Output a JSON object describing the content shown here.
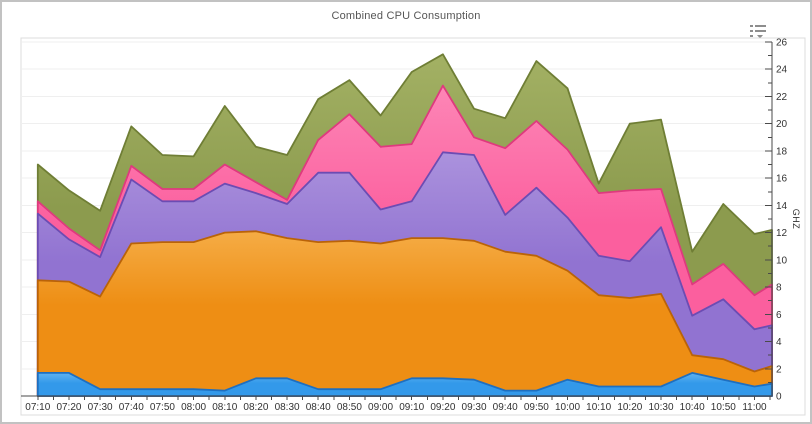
{
  "header": {
    "title": "Combined CPU Consumption",
    "menu_icon": "chart-context-menu"
  },
  "chart_data": {
    "type": "area",
    "stacked": true,
    "title": "Combined CPU Consumption",
    "xlabel": "",
    "ylabel": "GHZ",
    "ylim": [
      0,
      26
    ],
    "y_major_step": 2,
    "y_minor_step": 1,
    "y_tick_labels": [
      "0",
      "2",
      "4",
      "6",
      "8",
      "10",
      "12",
      "14",
      "16",
      "18",
      "20",
      "22",
      "24",
      "26"
    ],
    "y_axis_side": "right",
    "grid": "horizontal-major",
    "legend": "none",
    "categories": [
      "07:10",
      "07:20",
      "07:30",
      "07:40",
      "07:50",
      "08:00",
      "08:10",
      "08:20",
      "08:30",
      "08:40",
      "08:50",
      "09:00",
      "09:10",
      "09:20",
      "09:30",
      "09:40",
      "09:50",
      "10:00",
      "10:10",
      "10:20",
      "10:30",
      "10:40",
      "10:50",
      "11:00"
    ],
    "x_overhang_intervals": 0.56,
    "series": [
      {
        "name": "blue",
        "color": "#3399EA",
        "color_light": "#5FB2F1",
        "stroke": "#1E6FC0",
        "values": [
          1.7,
          1.7,
          0.5,
          0.5,
          0.5,
          0.5,
          0.4,
          1.3,
          1.3,
          0.5,
          0.5,
          0.5,
          1.3,
          1.3,
          1.2,
          0.4,
          0.4,
          1.2,
          0.7,
          0.7,
          0.7,
          1.7,
          1.2,
          0.7
        ],
        "edge_value": 0.9
      },
      {
        "name": "orange",
        "color": "#EE8E14",
        "color_light": "#F5AC45",
        "stroke": "#BA6308",
        "values": [
          6.8,
          6.7,
          6.8,
          10.7,
          10.8,
          10.8,
          11.6,
          10.8,
          10.3,
          10.8,
          10.9,
          10.7,
          10.3,
          10.3,
          10.2,
          10.2,
          9.9,
          8.0,
          6.7,
          6.5,
          6.8,
          1.3,
          1.5,
          1.1
        ],
        "edge_value": 1.3
      },
      {
        "name": "purple",
        "color": "#9173D1",
        "color_light": "#AB92DD",
        "stroke": "#6C4CB3",
        "values": [
          4.9,
          3.1,
          2.9,
          4.7,
          3.0,
          3.0,
          3.6,
          2.8,
          2.5,
          5.1,
          5.0,
          2.5,
          2.7,
          6.3,
          6.3,
          2.7,
          5.0,
          3.9,
          2.9,
          2.7,
          4.9,
          2.9,
          4.4,
          3.1
        ],
        "edge_value": 3.0
      },
      {
        "name": "pink",
        "color": "#FB5F9E",
        "color_light": "#FD86B6",
        "stroke": "#DE3A7E",
        "values": [
          0.9,
          0.8,
          0.5,
          1.0,
          0.9,
          0.9,
          1.4,
          0.8,
          0.3,
          2.4,
          4.3,
          4.6,
          4.2,
          4.9,
          1.3,
          4.9,
          4.9,
          5.0,
          4.6,
          5.2,
          2.8,
          2.3,
          2.6,
          2.5
        ],
        "edge_value": 3.0
      },
      {
        "name": "olive",
        "color": "#8C9B4E",
        "color_light": "#A3B164",
        "stroke": "#6F7E35",
        "values": [
          2.7,
          2.8,
          2.9,
          2.9,
          2.5,
          2.4,
          4.3,
          2.6,
          3.3,
          3.0,
          2.5,
          2.3,
          5.3,
          2.3,
          2.1,
          2.2,
          4.4,
          4.5,
          0.7,
          4.9,
          5.1,
          2.4,
          4.4,
          4.5
        ],
        "edge_value": 4.0
      }
    ]
  },
  "style_colors": {
    "grid_line": "#efefef",
    "axis_line": "#4a4a4a",
    "tick_label": "#333333",
    "panel_border": "#dcdcdc",
    "title_text": "#565656",
    "icon_gray": "#8d8d8d"
  }
}
